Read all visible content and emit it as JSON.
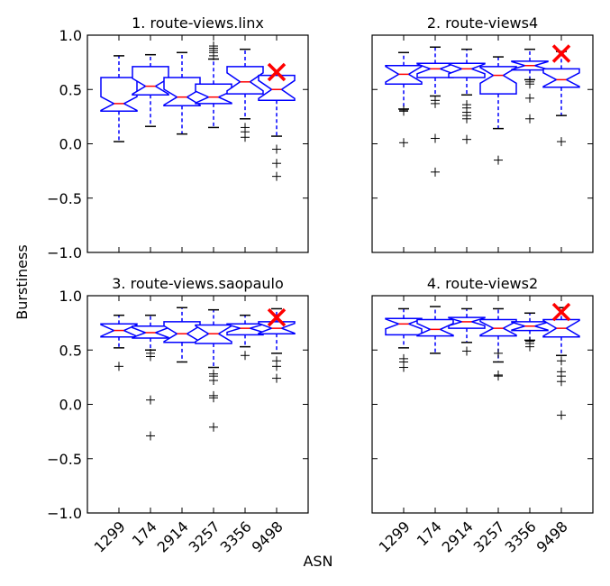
{
  "figure": {
    "ylabel": "Burstiness",
    "xlabel": "ASN"
  },
  "chart_data": [
    {
      "type": "box",
      "title": "1. route-views.linx",
      "categories": [
        "1299",
        "174",
        "2914",
        "3257",
        "3356",
        "9498"
      ],
      "ylim": [
        -1.0,
        1.0
      ],
      "yticks": [
        "1.0",
        "0.5",
        "0.0",
        "−0.5",
        "−1.0"
      ],
      "show_yticks": true,
      "show_xticks": false,
      "boxes": [
        {
          "q1": 0.3,
          "median": 0.37,
          "q3": 0.61,
          "whislo": 0.02,
          "whishi": 0.81,
          "fliers": []
        },
        {
          "q1": 0.45,
          "median": 0.53,
          "q3": 0.71,
          "whislo": 0.16,
          "whishi": 0.82,
          "fliers": []
        },
        {
          "q1": 0.35,
          "median": 0.43,
          "q3": 0.61,
          "whislo": 0.09,
          "whishi": 0.84,
          "fliers": []
        },
        {
          "q1": 0.37,
          "median": 0.43,
          "q3": 0.55,
          "whislo": 0.15,
          "whishi": 0.78,
          "fliers": [
            0.81,
            0.84,
            0.86,
            0.88,
            0.9
          ]
        },
        {
          "q1": 0.46,
          "median": 0.57,
          "q3": 0.71,
          "whislo": 0.23,
          "whishi": 0.87,
          "fliers": [
            0.06,
            0.11,
            0.15
          ]
        },
        {
          "q1": 0.4,
          "median": 0.5,
          "q3": 0.63,
          "whislo": 0.07,
          "whishi": 0.63,
          "fliers": [
            -0.05,
            -0.18,
            -0.3
          ]
        }
      ],
      "marker": {
        "category": "9498",
        "value": 0.66
      }
    },
    {
      "type": "box",
      "title": "2. route-views4",
      "categories": [
        "1299",
        "174",
        "2914",
        "3257",
        "3356",
        "9498"
      ],
      "ylim": [
        -1.0,
        1.0
      ],
      "yticks": [],
      "show_yticks": false,
      "show_xticks": false,
      "boxes": [
        {
          "q1": 0.55,
          "median": 0.64,
          "q3": 0.72,
          "whislo": 0.32,
          "whishi": 0.84,
          "fliers": [
            0.01,
            0.3,
            0.31
          ]
        },
        {
          "q1": 0.61,
          "median": 0.69,
          "q3": 0.74,
          "whislo": 0.44,
          "whishi": 0.89,
          "fliers": [
            -0.26,
            0.05,
            0.37,
            0.4
          ]
        },
        {
          "q1": 0.61,
          "median": 0.69,
          "q3": 0.74,
          "whislo": 0.45,
          "whishi": 0.87,
          "fliers": [
            0.04,
            0.23,
            0.26,
            0.29,
            0.33,
            0.36
          ]
        },
        {
          "q1": 0.46,
          "median": 0.63,
          "q3": 0.71,
          "whislo": 0.14,
          "whishi": 0.8,
          "fliers": [
            -0.15
          ]
        },
        {
          "q1": 0.68,
          "median": 0.72,
          "q3": 0.76,
          "whislo": 0.59,
          "whishi": 0.87,
          "fliers": [
            0.23,
            0.42,
            0.55,
            0.57
          ]
        },
        {
          "q1": 0.52,
          "median": 0.59,
          "q3": 0.69,
          "whislo": 0.26,
          "whishi": 0.85,
          "fliers": [
            0.02
          ]
        }
      ],
      "marker": {
        "category": "9498",
        "value": 0.83
      }
    },
    {
      "type": "box",
      "title": "3. route-views.saopaulo",
      "categories": [
        "1299",
        "174",
        "2914",
        "3257",
        "3356",
        "9498"
      ],
      "ylim": [
        -1.0,
        1.0
      ],
      "yticks": [
        "1.0",
        "0.5",
        "0.0",
        "−0.5",
        "−1.0"
      ],
      "show_yticks": true,
      "show_xticks": true,
      "boxes": [
        {
          "q1": 0.62,
          "median": 0.68,
          "q3": 0.74,
          "whislo": 0.52,
          "whishi": 0.82,
          "fliers": [
            0.35
          ]
        },
        {
          "q1": 0.61,
          "median": 0.66,
          "q3": 0.72,
          "whislo": 0.5,
          "whishi": 0.82,
          "fliers": [
            -0.29,
            0.04,
            0.44,
            0.47
          ]
        },
        {
          "q1": 0.57,
          "median": 0.65,
          "q3": 0.76,
          "whislo": 0.39,
          "whishi": 0.89,
          "fliers": []
        },
        {
          "q1": 0.56,
          "median": 0.65,
          "q3": 0.73,
          "whislo": 0.34,
          "whishi": 0.87,
          "fliers": [
            -0.21,
            0.06,
            0.08,
            0.22,
            0.26,
            0.28
          ]
        },
        {
          "q1": 0.64,
          "median": 0.7,
          "q3": 0.74,
          "whislo": 0.53,
          "whishi": 0.82,
          "fliers": [
            0.45
          ]
        },
        {
          "q1": 0.65,
          "median": 0.7,
          "q3": 0.76,
          "whislo": 0.47,
          "whishi": 0.88,
          "fliers": [
            0.24,
            0.35,
            0.4
          ]
        }
      ],
      "marker": {
        "category": "9498",
        "value": 0.8
      }
    },
    {
      "type": "box",
      "title": "4. route-views2",
      "categories": [
        "1299",
        "174",
        "2914",
        "3257",
        "3356",
        "9498"
      ],
      "ylim": [
        -1.0,
        1.0
      ],
      "yticks": [],
      "show_yticks": false,
      "show_xticks": true,
      "boxes": [
        {
          "q1": 0.64,
          "median": 0.74,
          "q3": 0.79,
          "whislo": 0.52,
          "whishi": 0.88,
          "fliers": [
            0.34,
            0.39,
            0.42
          ]
        },
        {
          "q1": 0.63,
          "median": 0.69,
          "q3": 0.78,
          "whislo": 0.47,
          "whishi": 0.9,
          "fliers": []
        },
        {
          "q1": 0.7,
          "median": 0.76,
          "q3": 0.8,
          "whislo": 0.57,
          "whishi": 0.88,
          "fliers": [
            0.49
          ]
        },
        {
          "q1": 0.63,
          "median": 0.7,
          "q3": 0.78,
          "whislo": 0.39,
          "whishi": 0.88,
          "fliers": [
            0.26,
            0.27,
            0.47
          ]
        },
        {
          "q1": 0.68,
          "median": 0.72,
          "q3": 0.76,
          "whislo": 0.59,
          "whishi": 0.84,
          "fliers": [
            0.53,
            0.56,
            0.58
          ]
        },
        {
          "q1": 0.62,
          "median": 0.7,
          "q3": 0.78,
          "whislo": 0.45,
          "whishi": 0.89,
          "fliers": [
            -0.1,
            0.21,
            0.26,
            0.3,
            0.4
          ]
        }
      ],
      "marker": {
        "category": "9498",
        "value": 0.85
      }
    }
  ]
}
